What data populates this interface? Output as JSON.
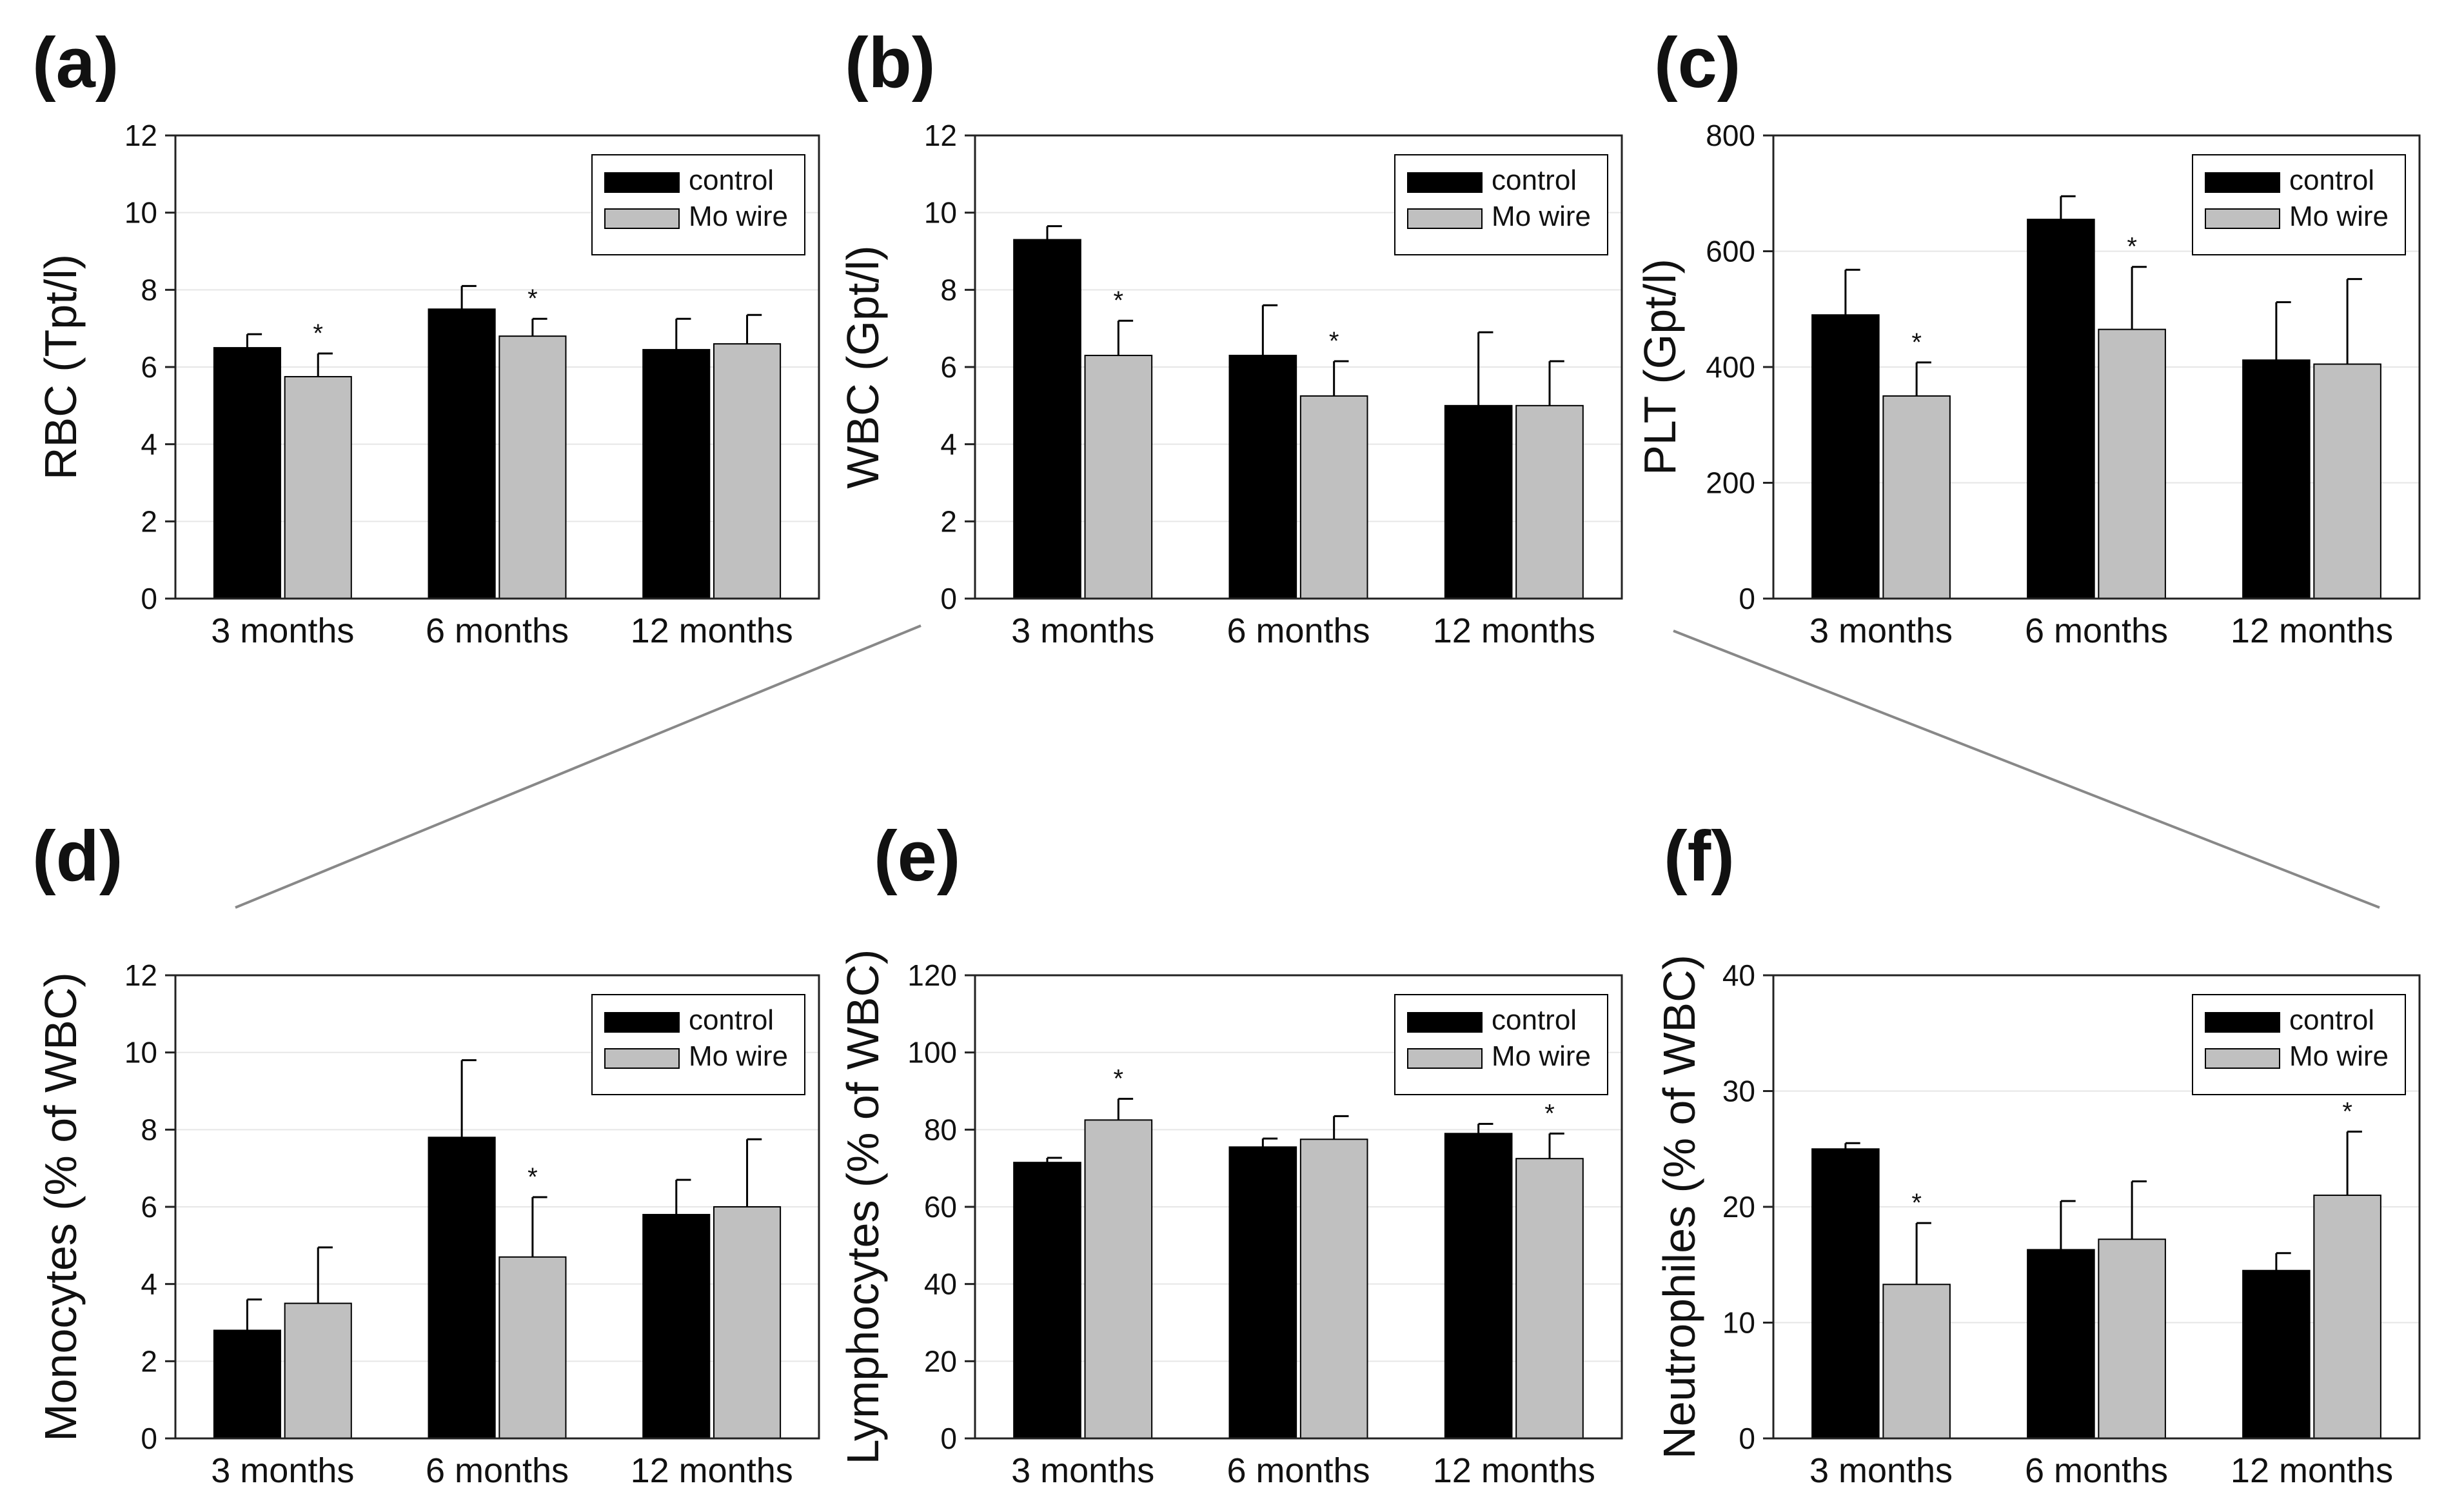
{
  "colors": {
    "control": "#000000",
    "mo_wire": "#c0c0c0",
    "axis": "#222222",
    "grid": "#e6e6e6",
    "connector": "#888888"
  },
  "chart_data": [
    {
      "panel": "(a)",
      "type": "bar",
      "ylabel": "RBC (Tpt/l)",
      "ylim": [
        0,
        12
      ],
      "yticks": [
        0,
        2,
        4,
        6,
        8,
        10,
        12
      ],
      "categories": [
        "3 months",
        "6 months",
        "12 months"
      ],
      "series": [
        {
          "name": "control",
          "values": [
            6.5,
            7.5,
            6.45
          ],
          "errors": [
            0.35,
            0.6,
            0.8
          ]
        },
        {
          "name": "Mo wire",
          "values": [
            5.75,
            6.8,
            6.6
          ],
          "errors": [
            0.6,
            0.45,
            0.75
          ]
        }
      ],
      "significance": [
        {
          "category": 0,
          "series": 1,
          "label": "*"
        },
        {
          "category": 1,
          "series": 1,
          "label": "*"
        }
      ],
      "legend": "top-right"
    },
    {
      "panel": "(b)",
      "type": "bar",
      "ylabel": "WBC (Gpt/l)",
      "ylim": [
        0,
        12
      ],
      "yticks": [
        0,
        2,
        4,
        6,
        8,
        10,
        12
      ],
      "categories": [
        "3 months",
        "6 months",
        "12 months"
      ],
      "series": [
        {
          "name": "control",
          "values": [
            9.3,
            6.3,
            5.0
          ],
          "errors": [
            0.35,
            1.3,
            1.9
          ]
        },
        {
          "name": "Mo wire",
          "values": [
            6.3,
            5.25,
            5.0
          ],
          "errors": [
            0.9,
            0.9,
            1.15
          ]
        }
      ],
      "significance": [
        {
          "category": 0,
          "series": 1,
          "label": "*"
        },
        {
          "category": 1,
          "series": 1,
          "label": "*"
        }
      ],
      "legend": "top-right"
    },
    {
      "panel": "(c)",
      "type": "bar",
      "ylabel": "PLT (Gpt/l)",
      "ylim": [
        0,
        800
      ],
      "yticks": [
        0,
        200,
        400,
        600,
        800
      ],
      "categories": [
        "3 months",
        "6 months",
        "12 months"
      ],
      "series": [
        {
          "name": "control",
          "values": [
            490,
            655,
            412
          ],
          "errors": [
            78,
            40,
            100
          ]
        },
        {
          "name": "Mo wire",
          "values": [
            350,
            465,
            405
          ],
          "errors": [
            58,
            108,
            147
          ]
        }
      ],
      "significance": [
        {
          "category": 0,
          "series": 1,
          "label": "*"
        },
        {
          "category": 1,
          "series": 1,
          "label": "*"
        }
      ],
      "legend": "top-right"
    },
    {
      "panel": "(d)",
      "type": "bar",
      "ylabel": "Monocytes (% of WBC)",
      "ylim": [
        0,
        12
      ],
      "yticks": [
        0,
        2,
        4,
        6,
        8,
        10,
        12
      ],
      "categories": [
        "3 months",
        "6 months",
        "12 months"
      ],
      "series": [
        {
          "name": "control",
          "values": [
            2.8,
            7.8,
            5.8
          ],
          "errors": [
            0.8,
            2.0,
            0.9
          ]
        },
        {
          "name": "Mo wire",
          "values": [
            3.5,
            4.7,
            6.0
          ],
          "errors": [
            1.45,
            1.55,
            1.75
          ]
        }
      ],
      "significance": [
        {
          "category": 1,
          "series": 1,
          "label": "*"
        }
      ],
      "legend": "top-right"
    },
    {
      "panel": "(e)",
      "type": "bar",
      "ylabel": "Lymphocytes (% of WBC)",
      "ylim": [
        0,
        120
      ],
      "yticks": [
        0,
        20,
        40,
        60,
        80,
        100,
        120
      ],
      "categories": [
        "3 months",
        "6 months",
        "12 months"
      ],
      "series": [
        {
          "name": "control",
          "values": [
            71.5,
            75.5,
            79
          ],
          "errors": [
            1.2,
            2.2,
            2.5
          ]
        },
        {
          "name": "Mo wire",
          "values": [
            82.5,
            77.5,
            72.5
          ],
          "errors": [
            5.5,
            6.0,
            6.5
          ]
        }
      ],
      "significance": [
        {
          "category": 0,
          "series": 1,
          "label": "*"
        },
        {
          "category": 2,
          "series": 1,
          "label": "*"
        }
      ],
      "legend": "top-right"
    },
    {
      "panel": "(f)",
      "type": "bar",
      "ylabel": "Neutrophiles (% of WBC)",
      "ylim": [
        0,
        40
      ],
      "yticks": [
        0,
        10,
        20,
        30,
        40
      ],
      "categories": [
        "3 months",
        "6 months",
        "12 months"
      ],
      "series": [
        {
          "name": "control",
          "values": [
            25.0,
            16.3,
            14.5
          ],
          "errors": [
            0.5,
            4.2,
            1.5
          ]
        },
        {
          "name": "Mo wire",
          "values": [
            13.3,
            17.2,
            21.0
          ],
          "errors": [
            5.3,
            5.0,
            5.5
          ]
        }
      ],
      "significance": [
        {
          "category": 0,
          "series": 1,
          "label": "*"
        },
        {
          "category": 2,
          "series": 1,
          "label": "*"
        }
      ],
      "legend": "top-right"
    }
  ]
}
